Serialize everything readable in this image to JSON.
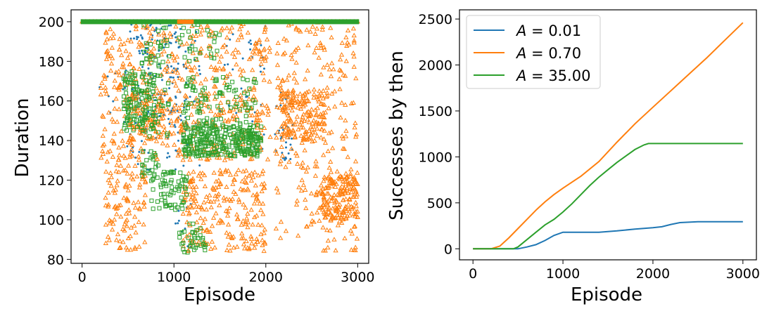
{
  "colors": {
    "blue": "#1f77b4",
    "orange": "#ff7f0e",
    "green": "#2ca02c"
  },
  "chart_data": [
    {
      "type": "scatter",
      "xlabel": "Episode",
      "ylabel": "Duration",
      "xlim": [
        -120,
        3120
      ],
      "ylim": [
        78,
        206
      ],
      "xticks": [
        0,
        1000,
        2000,
        3000
      ],
      "yticks": [
        80,
        100,
        120,
        140,
        160,
        180,
        200
      ],
      "grid": false,
      "series": [
        {
          "color": "#1f77b4",
          "marker": "dot",
          "clusters": [
            {
              "x": [
                0,
                3000
              ],
              "y": [
                200,
                200
              ],
              "count": 0,
              "note_cap": true
            },
            {
              "x": [
                450,
                1300
              ],
              "y": [
                125,
                200
              ],
              "count": 170
            },
            {
              "x": [
                600,
                1000
              ],
              "y": [
                150,
                200
              ],
              "count": 60
            },
            {
              "x": [
                2100,
                2300
              ],
              "y": [
                130,
                165
              ],
              "count": 35
            },
            {
              "x": [
                1500,
                2000
              ],
              "y": [
                135,
                200
              ],
              "count": 40
            },
            {
              "x": [
                150,
                450
              ],
              "y": [
                150,
                175
              ],
              "count": 8
            },
            {
              "x": [
                1000,
                1200
              ],
              "y": [
                85,
                110
              ],
              "count": 10
            }
          ]
        },
        {
          "color": "#ff7f0e",
          "marker": "triangle",
          "clusters": [
            {
              "x": [
                200,
                2050
              ],
              "y": [
                130,
                200
              ],
              "count": 520
            },
            {
              "x": [
                250,
                700
              ],
              "y": [
                84,
                130
              ],
              "count": 110
            },
            {
              "x": [
                1100,
                2000
              ],
              "y": [
                84,
                125
              ],
              "count": 230
            },
            {
              "x": [
                2100,
                3000
              ],
              "y": [
                84,
                200
              ],
              "count": 260
            },
            {
              "x": [
                2150,
                2650
              ],
              "y": [
                140,
                165
              ],
              "count": 150
            },
            {
              "x": [
                2600,
                3000
              ],
              "y": [
                100,
                122
              ],
              "count": 160
            },
            {
              "x": [
                500,
                900
              ],
              "y": [
                140,
                165
              ],
              "count": 90
            }
          ]
        },
        {
          "color": "#2ca02c",
          "marker": "square",
          "clusters": [
            {
              "x": [
                450,
                800
              ],
              "y": [
                145,
                175
              ],
              "count": 120
            },
            {
              "x": [
                650,
                950
              ],
              "y": [
                140,
                200
              ],
              "count": 60
            },
            {
              "x": [
                1100,
                1950
              ],
              "y": [
                132,
                148
              ],
              "count": 300
            },
            {
              "x": [
                1100,
                1900
              ],
              "y": [
                148,
                172
              ],
              "count": 90
            },
            {
              "x": [
                750,
                1150
              ],
              "y": [
                105,
                125
              ],
              "count": 70
            },
            {
              "x": [
                1050,
                1350
              ],
              "y": [
                83,
                98
              ],
              "count": 35
            },
            {
              "x": [
                1050,
                1500
              ],
              "y": [
                180,
                200
              ],
              "count": 30
            },
            {
              "x": [
                650,
                850
              ],
              "y": [
                120,
                135
              ],
              "count": 20
            }
          ]
        }
      ],
      "cap": {
        "y": 200,
        "x": [
          0,
          3000
        ],
        "color": "#2ca02c"
      }
    },
    {
      "type": "line",
      "xlabel": "Episode",
      "ylabel": "Successes by then",
      "xlim": [
        -150,
        3150
      ],
      "ylim": [
        -120,
        2600
      ],
      "xticks": [
        0,
        1000,
        2000,
        3000
      ],
      "yticks": [
        0,
        500,
        1000,
        1500,
        2000,
        2500
      ],
      "grid": false,
      "legend_position": "upper-left",
      "series": [
        {
          "name": "A = 0.01",
          "name_var": "A",
          "name_val": "= 0.01",
          "color": "#1f77b4",
          "x": [
            0,
            500,
            600,
            700,
            800,
            900,
            1000,
            1200,
            1400,
            1600,
            1800,
            2000,
            2100,
            2200,
            2300,
            2500,
            3000
          ],
          "y": [
            0,
            0,
            20,
            45,
            90,
            145,
            180,
            180,
            180,
            195,
            215,
            230,
            240,
            265,
            285,
            295,
            295
          ]
        },
        {
          "name": "A = 0.70",
          "name_var": "A",
          "name_val": "= 0.70",
          "color": "#ff7f0e",
          "x": [
            0,
            200,
            300,
            400,
            500,
            600,
            700,
            800,
            900,
            1000,
            1200,
            1400,
            1600,
            1800,
            2000,
            2200,
            2400,
            2600,
            2800,
            3000
          ],
          "y": [
            0,
            0,
            30,
            120,
            220,
            320,
            420,
            510,
            590,
            660,
            790,
            950,
            1160,
            1360,
            1540,
            1720,
            1900,
            2080,
            2270,
            2460
          ]
        },
        {
          "name": "A = 35.00",
          "name_var": "A",
          "name_val": "= 35.00",
          "color": "#2ca02c",
          "x": [
            0,
            450,
            500,
            600,
            700,
            800,
            900,
            1000,
            1100,
            1200,
            1300,
            1400,
            1500,
            1600,
            1700,
            1800,
            1900,
            1950,
            2000,
            2500,
            3000
          ],
          "y": [
            0,
            0,
            20,
            100,
            180,
            260,
            320,
            400,
            490,
            590,
            690,
            780,
            860,
            940,
            1010,
            1080,
            1130,
            1145,
            1145,
            1145,
            1145
          ]
        }
      ]
    }
  ]
}
